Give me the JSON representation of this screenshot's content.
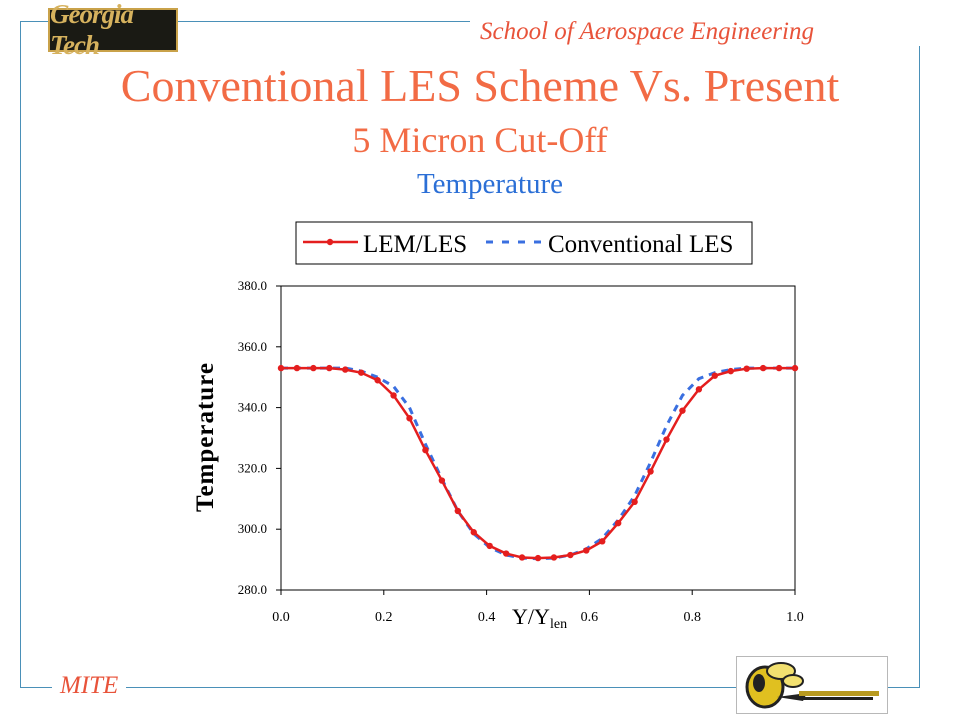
{
  "header": {
    "logo_text": "Georgia Tech",
    "school": "School of Aerospace Engineering"
  },
  "slide": {
    "title": "Conventional LES Scheme Vs. Present",
    "subtitle": "5 Micron Cut-Off",
    "caption": "Temperature"
  },
  "footer": {
    "label": "MITE",
    "mascot_icon": "yellow-jacket-icon"
  },
  "colors": {
    "frame": "#4a90b8",
    "title": "#f26b45",
    "caption": "#2b6fd6",
    "series_lem": "#e41e1e",
    "series_conv": "#3a6fe0"
  },
  "chart_data": {
    "type": "line",
    "ylabel": "Temperature",
    "xlabel_main": "Y/Y",
    "xlabel_sub": "len",
    "xlim": [
      0.0,
      1.0
    ],
    "ylim": [
      280.0,
      380.0
    ],
    "x_ticks": [
      "0.0",
      "0.2",
      "0.4",
      "0.6",
      "0.8",
      "1.0"
    ],
    "y_ticks": [
      "280.0",
      "300.0",
      "320.0",
      "340.0",
      "360.0",
      "380.0"
    ],
    "grid": false,
    "legend_position": "top",
    "series": [
      {
        "name": "LEM/LES",
        "style": "solid-markers",
        "x": [
          0.0,
          0.031,
          0.063,
          0.094,
          0.125,
          0.156,
          0.188,
          0.219,
          0.25,
          0.281,
          0.313,
          0.344,
          0.375,
          0.406,
          0.438,
          0.469,
          0.5,
          0.531,
          0.563,
          0.594,
          0.625,
          0.656,
          0.688,
          0.719,
          0.75,
          0.781,
          0.813,
          0.844,
          0.875,
          0.906,
          0.938,
          0.969,
          1.0
        ],
        "values": [
          353.0,
          353.0,
          353.0,
          353.0,
          352.5,
          351.5,
          349.0,
          344.0,
          336.5,
          326.0,
          316.0,
          306.0,
          299.0,
          294.5,
          292.0,
          290.7,
          290.5,
          290.7,
          291.5,
          293.0,
          296.0,
          302.0,
          309.0,
          319.0,
          329.5,
          339.0,
          346.0,
          350.5,
          352.0,
          352.8,
          353.0,
          353.0,
          353.0
        ]
      },
      {
        "name": "Conventional LES",
        "style": "dashed",
        "x": [
          0.0,
          0.031,
          0.063,
          0.094,
          0.125,
          0.156,
          0.188,
          0.219,
          0.25,
          0.281,
          0.313,
          0.344,
          0.375,
          0.406,
          0.438,
          0.469,
          0.5,
          0.531,
          0.563,
          0.594,
          0.625,
          0.656,
          0.688,
          0.719,
          0.75,
          0.781,
          0.813,
          0.844,
          0.875,
          0.906,
          0.938,
          0.969,
          1.0
        ],
        "values": [
          353.0,
          353.0,
          353.0,
          353.0,
          353.0,
          352.0,
          350.0,
          347.0,
          340.0,
          328.0,
          316.5,
          306.0,
          298.5,
          294.0,
          291.5,
          290.5,
          290.3,
          290.5,
          291.5,
          293.5,
          297.0,
          303.0,
          311.0,
          322.0,
          334.0,
          344.0,
          349.5,
          351.5,
          352.5,
          353.0,
          353.0,
          353.0,
          353.0
        ]
      }
    ]
  }
}
